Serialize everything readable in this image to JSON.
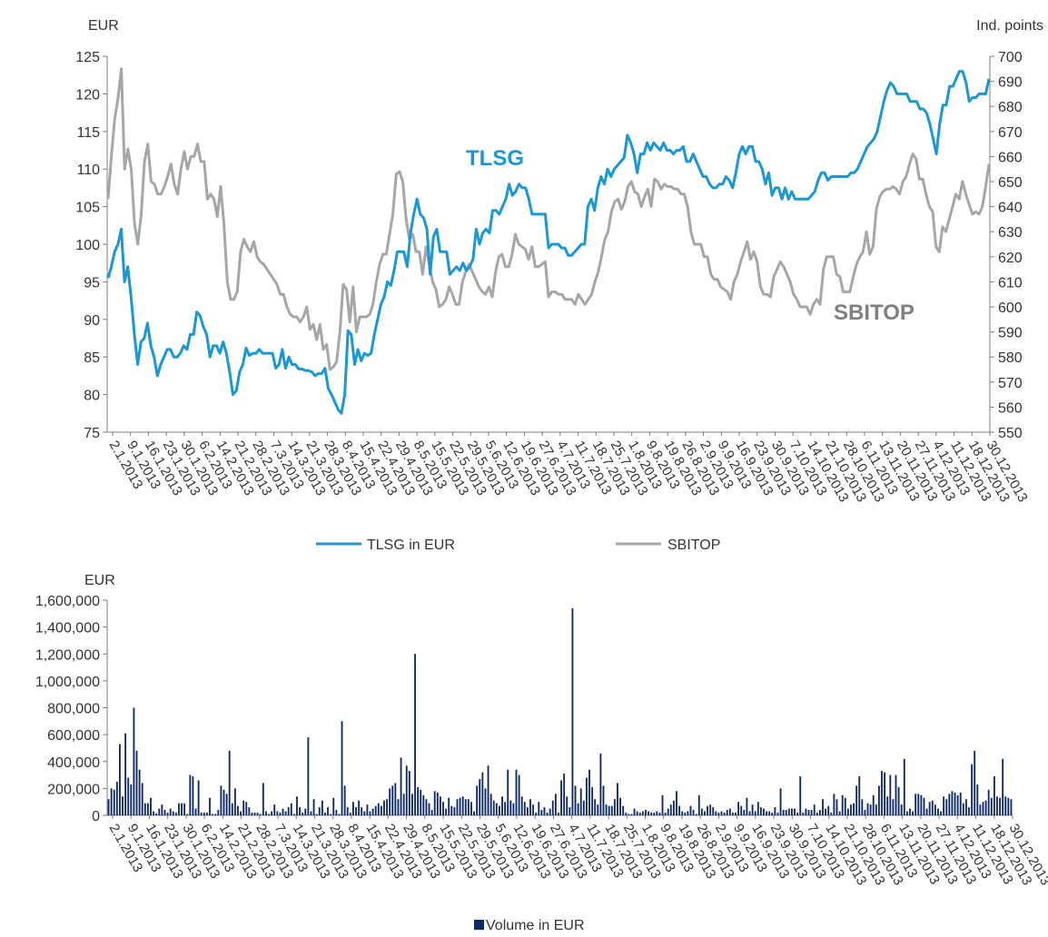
{
  "chart_data": [
    {
      "type": "line",
      "yleft_unit": "EUR",
      "yright_unit": "Ind. points",
      "ylim_left": [
        75,
        125
      ],
      "ylim_right": [
        550,
        700
      ],
      "yticks_left": [
        "75",
        "80",
        "85",
        "90",
        "95",
        "100",
        "105",
        "110",
        "115",
        "120",
        "125"
      ],
      "yticks_right": [
        "550",
        "560",
        "570",
        "580",
        "590",
        "600",
        "610",
        "620",
        "630",
        "640",
        "650",
        "660",
        "670",
        "680",
        "690",
        "700"
      ],
      "x_tick_labels": [
        "2.1.2013",
        "9.1.2013",
        "16.1.2013",
        "23.1.2013",
        "30.1.2013",
        "6.2.2013",
        "14.2.2013",
        "21.2.2013",
        "28.2.2013",
        "7.3.2013",
        "14.3.2013",
        "21.3.2013",
        "28.3.2013",
        "8.4.2013",
        "15.4.2013",
        "22.4.2013",
        "29.4.2013",
        "8.5.2013",
        "15.5.2013",
        "22.5.2013",
        "29.5.2013",
        "5.6.2013",
        "12.6.2013",
        "19.6.2013",
        "27.6.2013",
        "4.7.2013",
        "11.7.2013",
        "18.7.2013",
        "25.7.2013",
        "1.8.2013",
        "9.8.2013",
        "19.8.2013",
        "26.8.2013",
        "2.9.2013",
        "9.9.2013",
        "16.9.2013",
        "23.9.2013",
        "30.9.2013",
        "7.10.2013",
        "14.10.2013",
        "21.10.2013",
        "28.10.2013",
        "6.11.2013",
        "13.11.2013",
        "20.11.2013",
        "27.11.2013",
        "4.12.2013",
        "11.12.2013",
        "18.12.2013",
        "30.12.2013"
      ],
      "annotations": [
        "TLSG",
        "SBITOP"
      ],
      "series": [
        {
          "name": "TLSG in EUR",
          "axis": "left",
          "color": "#1a97d5",
          "values": [
            95.5,
            97,
            99,
            100,
            102,
            95,
            97,
            93,
            88,
            84,
            87,
            87.5,
            89.5,
            86.5,
            85,
            82.5,
            84,
            85,
            86,
            86,
            85,
            85,
            85.5,
            86.5,
            86,
            88,
            88,
            91,
            90.5,
            89,
            88,
            85,
            86.5,
            86.5,
            85.5,
            87,
            85.5,
            83,
            80,
            80.5,
            83,
            84,
            86.2,
            85.2,
            85.5,
            85.5,
            86,
            85.5,
            85.5,
            85.5,
            85.5,
            83.5,
            84,
            86,
            83.5,
            85,
            84,
            84,
            83.4,
            83.4,
            83.2,
            83.2,
            83,
            82.5,
            82.8,
            82.8,
            83.5,
            80.8,
            80,
            79,
            78,
            77.5,
            80,
            88.5,
            88,
            84,
            86,
            84.5,
            85.5,
            85.2,
            85.5,
            88,
            90,
            92,
            93,
            95,
            94.5,
            96.5,
            99,
            99,
            99,
            97,
            101.5,
            104,
            106,
            104,
            103.5,
            102,
            96,
            101,
            102,
            99,
            99,
            99,
            96,
            96.5,
            97,
            96.5,
            97.5,
            96.5,
            97,
            98,
            102,
            100,
            101.5,
            102,
            101.5,
            104.5,
            104.5,
            104,
            105,
            106,
            108,
            106.5,
            107,
            108,
            107.5,
            107.5,
            106,
            104,
            104,
            104,
            104,
            104,
            99.5,
            100,
            100,
            100,
            99.5,
            99.5,
            98.5,
            98.5,
            99,
            99.5,
            100,
            100,
            105,
            106,
            104.5,
            107.5,
            109,
            108,
            110,
            109,
            110,
            110.5,
            111,
            111.5,
            114.5,
            113.5,
            112,
            109.5,
            112,
            112,
            113.5,
            112.5,
            113.5,
            113,
            112.5,
            113.5,
            112.5,
            112.5,
            112,
            112.5,
            112.5,
            113,
            111,
            111,
            112,
            111,
            110,
            109,
            109,
            108,
            107.5,
            107.5,
            108,
            108,
            109,
            108.5,
            107.5,
            109.5,
            112,
            113,
            112,
            113,
            113,
            111,
            111,
            110,
            108,
            109.5,
            106.5,
            107.5,
            107.5,
            106,
            107.5,
            106,
            107,
            106,
            106,
            106,
            106,
            106,
            106.5,
            107,
            108.5,
            109.5,
            109.5,
            108.5,
            109,
            109,
            109,
            109,
            109,
            109,
            109.5,
            109.5,
            110,
            111,
            112,
            113,
            113.5,
            114,
            115,
            117,
            119,
            120.5,
            121.5,
            121,
            120,
            120,
            120,
            120,
            119,
            119,
            119,
            118,
            118,
            117.5,
            116,
            114,
            112,
            116,
            118.5,
            118.5,
            121,
            121,
            122,
            123,
            123,
            121.5,
            119,
            119.5,
            119.5,
            120,
            120,
            120,
            122
          ]
        },
        {
          "name": "SBITOP",
          "axis": "right",
          "color": "#a6a6a6",
          "values": [
            643,
            660,
            675,
            683,
            695,
            655,
            663,
            655,
            633,
            625,
            637,
            658,
            665,
            650,
            649,
            645,
            645,
            648,
            652,
            657,
            649,
            645,
            655,
            662,
            655,
            660,
            660,
            665,
            658,
            658,
            643,
            645,
            643,
            636,
            648,
            633,
            610,
            603,
            603,
            606,
            622,
            627,
            624,
            622,
            626,
            620,
            618,
            617,
            615,
            613,
            611,
            609,
            605,
            605,
            600,
            597,
            596,
            596,
            594,
            596,
            600,
            591,
            593,
            587,
            593,
            583,
            585,
            575,
            576,
            578,
            590,
            609,
            607,
            594,
            608,
            590,
            596,
            596,
            596,
            597,
            601,
            610,
            617,
            621,
            621,
            629,
            637,
            653,
            654,
            650,
            635,
            627,
            629,
            622,
            622,
            613,
            624,
            617,
            610,
            607,
            600,
            601,
            603,
            608,
            605,
            601,
            601,
            610,
            614,
            617,
            614,
            611,
            608,
            606,
            605,
            608,
            604,
            614,
            620,
            621,
            616,
            616,
            621,
            629,
            625,
            624,
            623,
            619,
            624,
            616,
            616,
            617,
            618,
            604,
            606,
            606,
            605,
            605,
            603,
            603,
            603,
            601,
            605,
            603,
            601,
            603,
            605,
            610,
            614,
            620,
            627,
            630,
            638,
            642,
            643,
            639,
            642,
            648,
            650,
            646,
            645,
            640,
            644,
            647,
            640,
            651,
            650,
            647,
            649,
            648,
            648,
            647,
            647,
            645,
            645,
            640,
            630,
            625,
            625,
            625,
            620,
            620,
            613,
            611,
            611,
            608,
            607,
            606,
            603,
            610,
            613,
            618,
            622,
            626,
            619,
            622,
            618,
            608,
            605,
            605,
            604,
            612,
            615,
            618,
            616,
            613,
            610,
            605,
            603,
            600,
            600,
            600,
            597,
            601,
            603,
            601,
            615,
            620,
            620,
            620,
            613,
            612,
            606,
            606,
            606,
            612,
            617,
            620,
            622,
            630,
            621,
            624,
            639,
            644,
            646,
            647,
            647,
            648,
            647,
            645,
            650,
            652,
            657,
            661,
            659,
            651,
            651,
            645,
            640,
            638,
            624,
            622,
            632,
            630,
            635,
            640,
            645,
            643,
            650,
            645,
            641,
            637,
            638,
            637,
            640,
            648,
            657
          ]
        }
      ],
      "legend": "bottom"
    },
    {
      "type": "bar",
      "ylabel": "EUR",
      "ylim": [
        0,
        1600000
      ],
      "yticks": [
        "0",
        "200,000",
        "400,000",
        "600,000",
        "800,000",
        "1,000,000",
        "1,200,000",
        "1,400,000",
        "1,600,000"
      ],
      "x_tick_labels": [
        "2.1.2013",
        "9.1.2013",
        "16.1.2013",
        "23.1.2013",
        "30.1.2013",
        "6.2.2013",
        "14.2.2013",
        "21.2.2013",
        "28.2.2013",
        "7.3.2013",
        "14.3.2013",
        "21.3.2013",
        "28.3.2013",
        "8.4.2013",
        "15.4.2013",
        "22.4.2013",
        "29.4.2013",
        "8.5.2013",
        "15.5.2013",
        "22.5.2013",
        "29.5.2013",
        "5.6.2013",
        "12.6.2013",
        "19.6.2013",
        "27.6.2013",
        "4.7.2013",
        "11.7.2013",
        "18.7.2013",
        "25.7.2013",
        "1.8.2013",
        "9.8.2013",
        "19.8.2013",
        "26.8.2013",
        "2.9.2013",
        "9.9.2013",
        "16.9.2013",
        "23.9.2013",
        "30.9.2013",
        "7.10.2013",
        "14.10.2013",
        "21.10.2013",
        "28.10.2013",
        "6.11.2013",
        "13.11.2013",
        "20.11.2013",
        "27.11.2013",
        "4.12.2013",
        "11.12.2013",
        "18.12.2013",
        "30.12.2013"
      ],
      "color": "#0f2a63",
      "series": [
        {
          "name": "Volume in EUR",
          "values": [
            120000,
            200000,
            190000,
            250000,
            530000,
            140000,
            610000,
            280000,
            230000,
            800000,
            480000,
            340000,
            240000,
            90000,
            90000,
            130000,
            30000,
            15000,
            50000,
            80000,
            40000,
            20000,
            50000,
            30000,
            20000,
            90000,
            90000,
            90000,
            10000,
            300000,
            290000,
            50000,
            260000,
            20000,
            20000,
            20000,
            130000,
            10000,
            10000,
            40000,
            220000,
            190000,
            160000,
            480000,
            90000,
            200000,
            70000,
            30000,
            110000,
            100000,
            60000,
            20000,
            20000,
            20000,
            10000,
            240000,
            30000,
            10000,
            30000,
            80000,
            30000,
            20000,
            50000,
            30000,
            60000,
            90000,
            10000,
            140000,
            60000,
            20000,
            50000,
            580000,
            30000,
            120000,
            10000,
            60000,
            110000,
            20000,
            60000,
            10000,
            130000,
            40000,
            10000,
            700000,
            220000,
            60000,
            20000,
            100000,
            60000,
            110000,
            60000,
            30000,
            80000,
            30000,
            50000,
            70000,
            90000,
            70000,
            110000,
            120000,
            200000,
            220000,
            240000,
            120000,
            430000,
            160000,
            370000,
            330000,
            160000,
            1200000,
            210000,
            190000,
            150000,
            120000,
            90000,
            40000,
            180000,
            170000,
            140000,
            100000,
            50000,
            130000,
            70000,
            60000,
            120000,
            130000,
            140000,
            120000,
            120000,
            100000,
            30000,
            220000,
            270000,
            320000,
            200000,
            370000,
            160000,
            110000,
            90000,
            70000,
            140000,
            100000,
            340000,
            110000,
            90000,
            340000,
            300000,
            140000,
            100000,
            60000,
            120000,
            80000,
            20000,
            100000,
            40000,
            60000,
            20000,
            50000,
            110000,
            160000,
            20000,
            260000,
            310000,
            140000,
            60000,
            1540000,
            220000,
            90000,
            200000,
            110000,
            280000,
            340000,
            210000,
            120000,
            80000,
            460000,
            220000,
            80000,
            70000,
            70000,
            120000,
            240000,
            130000,
            70000,
            20000,
            10000,
            10000,
            50000,
            30000,
            20000,
            30000,
            40000,
            30000,
            20000,
            20000,
            30000,
            20000,
            150000,
            20000,
            50000,
            80000,
            110000,
            180000,
            70000,
            30000,
            20000,
            30000,
            70000,
            40000,
            10000,
            150000,
            50000,
            30000,
            70000,
            80000,
            60000,
            30000,
            20000,
            30000,
            20000,
            40000,
            50000,
            20000,
            20000,
            100000,
            70000,
            40000,
            130000,
            30000,
            80000,
            30000,
            100000,
            60000,
            50000,
            30000,
            30000,
            20000,
            60000,
            20000,
            200000,
            40000,
            40000,
            50000,
            50000,
            50000,
            20000,
            290000,
            20000,
            50000,
            40000,
            40000,
            80000,
            20000,
            40000,
            120000,
            50000,
            70000,
            20000,
            160000,
            120000,
            30000,
            150000,
            130000,
            50000,
            80000,
            90000,
            220000,
            290000,
            120000,
            40000,
            90000,
            80000,
            150000,
            80000,
            220000,
            330000,
            320000,
            140000,
            300000,
            120000,
            300000,
            210000,
            80000,
            420000,
            30000,
            50000,
            30000,
            160000,
            160000,
            150000,
            130000,
            50000,
            100000,
            110000,
            80000,
            50000,
            30000,
            140000,
            120000,
            160000,
            180000,
            170000,
            150000,
            170000,
            90000,
            120000,
            60000,
            380000,
            480000,
            230000,
            80000,
            100000,
            110000,
            190000,
            130000,
            290000,
            140000,
            130000,
            420000,
            140000,
            130000,
            120000
          ]
        }
      ],
      "legend": "bottom"
    }
  ]
}
